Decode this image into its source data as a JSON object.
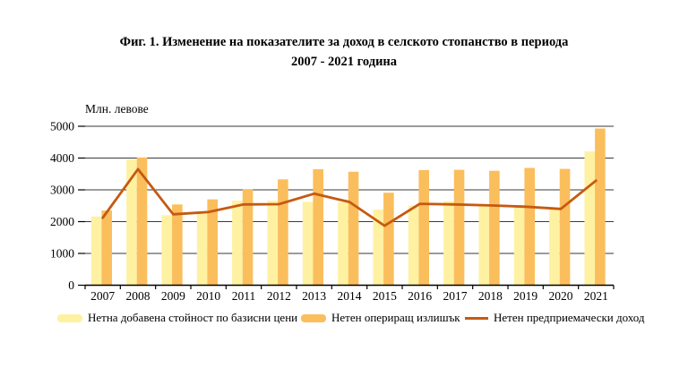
{
  "figure": {
    "title_line1": "Фиг. 1. Изменение на показателите за доход в селското стопанство в периода",
    "title_line2": "2007 - 2021 година",
    "y_axis_title": "Млн. левове"
  },
  "chart_data": {
    "type": "combo_bar_line",
    "title": "Фиг. 1. Изменение на показателите за доход в селското стопанство в периода 2007 - 2021 година",
    "ylabel": "Млн. левове",
    "xlabel": "",
    "ylim": [
      0,
      5000
    ],
    "yticks": [
      0,
      1000,
      2000,
      3000,
      4000,
      5000
    ],
    "grid": true,
    "legend_position": "bottom",
    "categories": [
      "2007",
      "2008",
      "2009",
      "2010",
      "2011",
      "2012",
      "2013",
      "2014",
      "2015",
      "2016",
      "2017",
      "2018",
      "2019",
      "2020",
      "2021"
    ],
    "series": [
      {
        "key": "net-value-added",
        "name": "Нетна добавена стойност по базисни цени",
        "type": "bar",
        "color": "#FFF1A2",
        "values": [
          2160,
          3960,
          2200,
          2240,
          2660,
          2660,
          2620,
          2610,
          2380,
          2510,
          2640,
          2490,
          2450,
          2390,
          4210
        ]
      },
      {
        "key": "net-operating-surplus",
        "name": "Нетен опериращ излишък",
        "type": "bar",
        "color": "#FBBE5C",
        "values": [
          2350,
          4020,
          2540,
          2700,
          3010,
          3330,
          3650,
          3570,
          2910,
          3620,
          3630,
          3600,
          3690,
          3660,
          4930
        ]
      },
      {
        "key": "net-entrepreneurial-income",
        "name": "Нетен предприемачески доход",
        "type": "line",
        "color": "#C55A11",
        "values": [
          2120,
          3650,
          2230,
          2300,
          2540,
          2550,
          2880,
          2620,
          1870,
          2560,
          2540,
          2510,
          2470,
          2400,
          3290
        ]
      }
    ]
  },
  "legend": {
    "items": [
      {
        "label": "Нетна добавена стойност по базисни цени",
        "swatch": "bar",
        "color": "#FFF1A2"
      },
      {
        "label": "Нетен опериращ излишък",
        "swatch": "bar",
        "color": "#FBBE5C"
      },
      {
        "label": "Нетен предприемачески доход",
        "swatch": "line",
        "color": "#C55A11"
      }
    ]
  },
  "colors": {
    "grid": "#3a3a3a",
    "axis": "#000000",
    "text": "#000000",
    "background": "#FFFFFF"
  }
}
